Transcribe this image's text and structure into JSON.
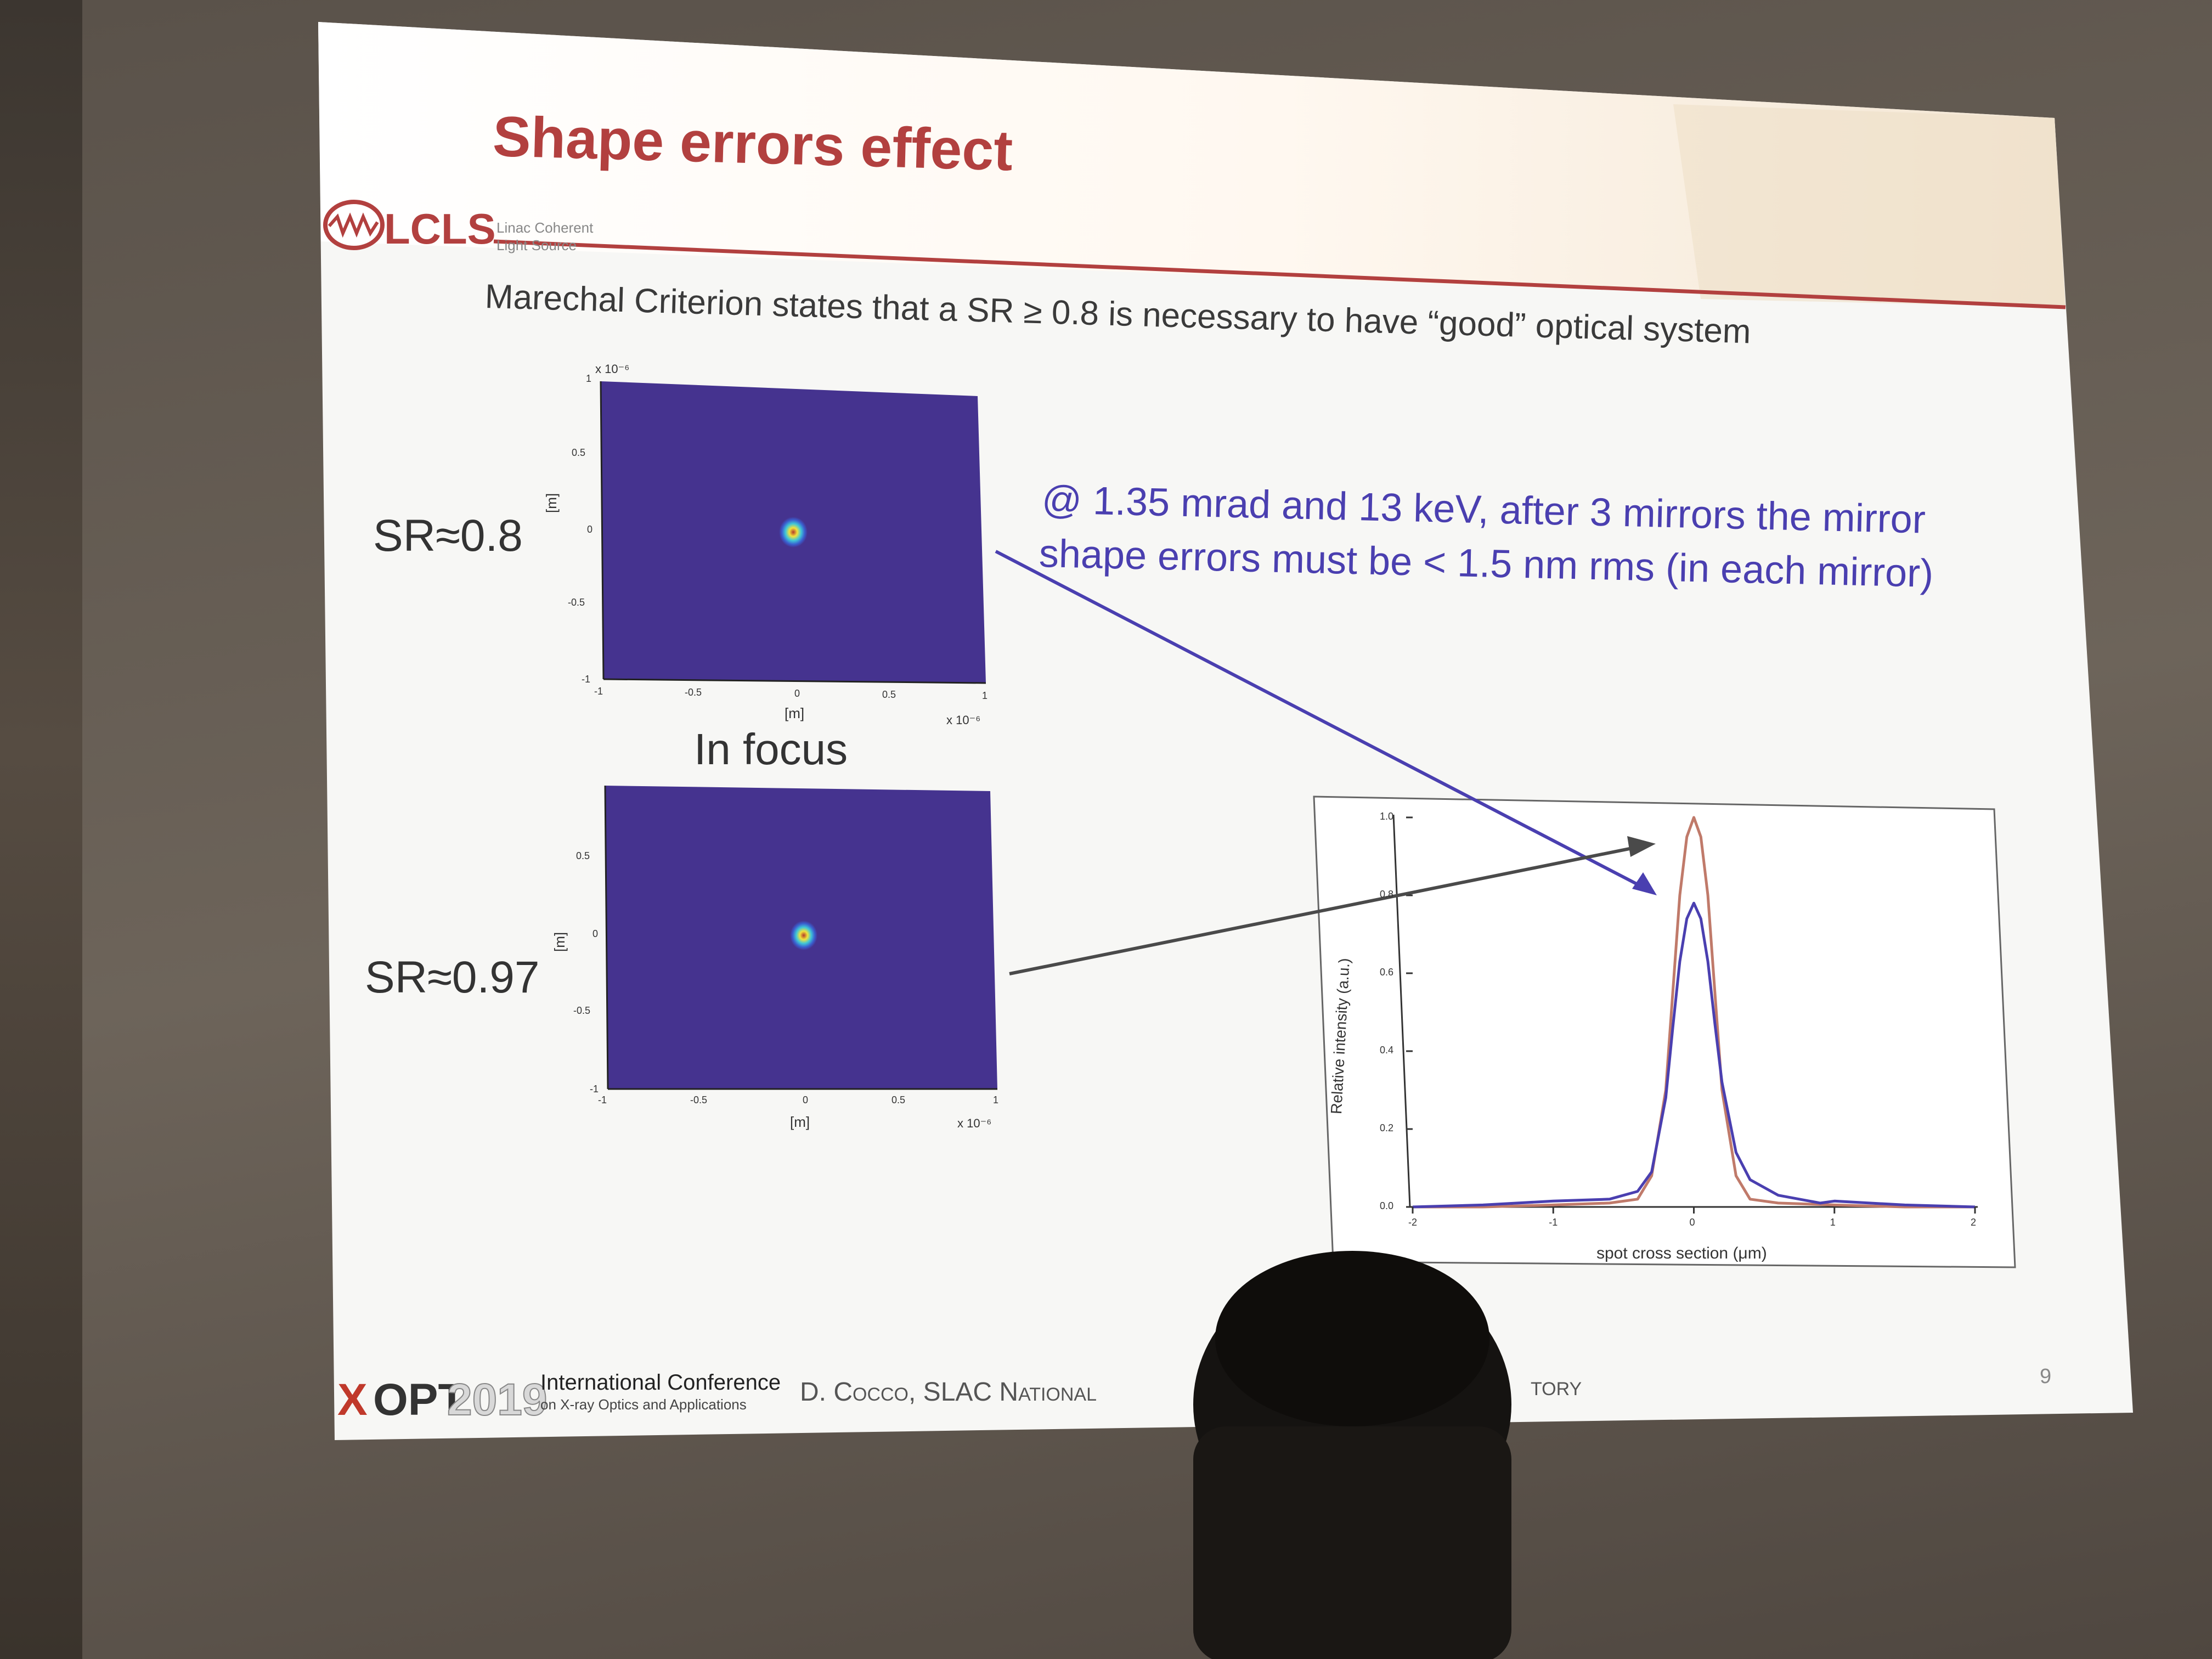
{
  "slide": {
    "title": "Shape errors effect",
    "logo": {
      "name": "LCLS",
      "sub1": "Linac Coherent",
      "sub2": "Light Source"
    },
    "criterion": "Marechal Criterion states that a SR ≥ 0.8 is necessary to have “good”  optical system",
    "annotation_line1": "@ 1.35 mrad and 13 keV, after 3 mirrors the mirror",
    "annotation_line2": "shape errors must be < 1.5 nm rms (in each mirror)",
    "in_focus": "In focus",
    "page_number": "9",
    "footer": {
      "logo_x": "X",
      "logo_opt": "OPT",
      "logo_year": "2019",
      "conf_line1": "International Conference",
      "conf_line2": "on X-ray Optics and Applications",
      "author_visible_left": "D. Cocco, SLAC National",
      "author_visible_right": "tory"
    },
    "colors": {
      "title": "#b2403f",
      "annotation": "#4a3fb0",
      "plot_bg": "#45338f",
      "rule": "#b2403f"
    }
  },
  "spot_plots": [
    {
      "label": "SR≈0.8",
      "ylabel": "[m]",
      "xlabel": "[m]",
      "exp_top": "x 10⁻⁶",
      "exp_bottom": "x 10⁻⁶",
      "xticks": [
        "-1",
        "-0.5",
        "0",
        "0.5",
        "1"
      ],
      "yticks": [
        "1",
        "0.5",
        "0",
        "-0.5",
        "-1"
      ]
    },
    {
      "label": "SR≈0.97",
      "ylabel": "[m]",
      "xlabel": "[m]",
      "exp_bottom": "x 10⁻⁶",
      "xticks": [
        "-1",
        "-0.5",
        "0",
        "0.5",
        "1"
      ],
      "yticks": [
        "0.5",
        "0",
        "-0.5",
        "-1"
      ]
    }
  ],
  "chart_data": {
    "type": "line",
    "xlabel": "spot cross section (μm)",
    "ylabel": "Relative intensity (a.u.)",
    "xlim": [
      -2,
      2
    ],
    "ylim": [
      0,
      1.0
    ],
    "xticks": [
      "-2",
      "-1",
      "0",
      "1",
      "2"
    ],
    "yticks": [
      "0.0",
      "0.2",
      "0.4",
      "0.6",
      "0.8",
      "1.0"
    ],
    "series": [
      {
        "color": "#c07a6a",
        "x": [
          -2,
          -1.5,
          -1.0,
          -0.6,
          -0.4,
          -0.3,
          -0.2,
          -0.15,
          -0.1,
          -0.05,
          0.0,
          0.05,
          0.1,
          0.15,
          0.2,
          0.3,
          0.4,
          0.6,
          1.0,
          1.5,
          2
        ],
        "values": [
          0.0,
          0.0,
          0.005,
          0.01,
          0.02,
          0.08,
          0.3,
          0.55,
          0.8,
          0.95,
          1.0,
          0.95,
          0.8,
          0.55,
          0.3,
          0.08,
          0.02,
          0.01,
          0.005,
          0.0,
          0.0
        ]
      },
      {
        "color": "#4a3fb0",
        "x": [
          -2,
          -1.5,
          -1.0,
          -0.6,
          -0.4,
          -0.3,
          -0.2,
          -0.15,
          -0.1,
          -0.05,
          0.0,
          0.05,
          0.1,
          0.15,
          0.2,
          0.3,
          0.4,
          0.6,
          0.9,
          1.0,
          1.5,
          2
        ],
        "values": [
          0.0,
          0.005,
          0.015,
          0.02,
          0.04,
          0.09,
          0.28,
          0.46,
          0.63,
          0.74,
          0.78,
          0.74,
          0.63,
          0.47,
          0.32,
          0.14,
          0.07,
          0.03,
          0.01,
          0.015,
          0.005,
          0.0
        ]
      }
    ]
  }
}
